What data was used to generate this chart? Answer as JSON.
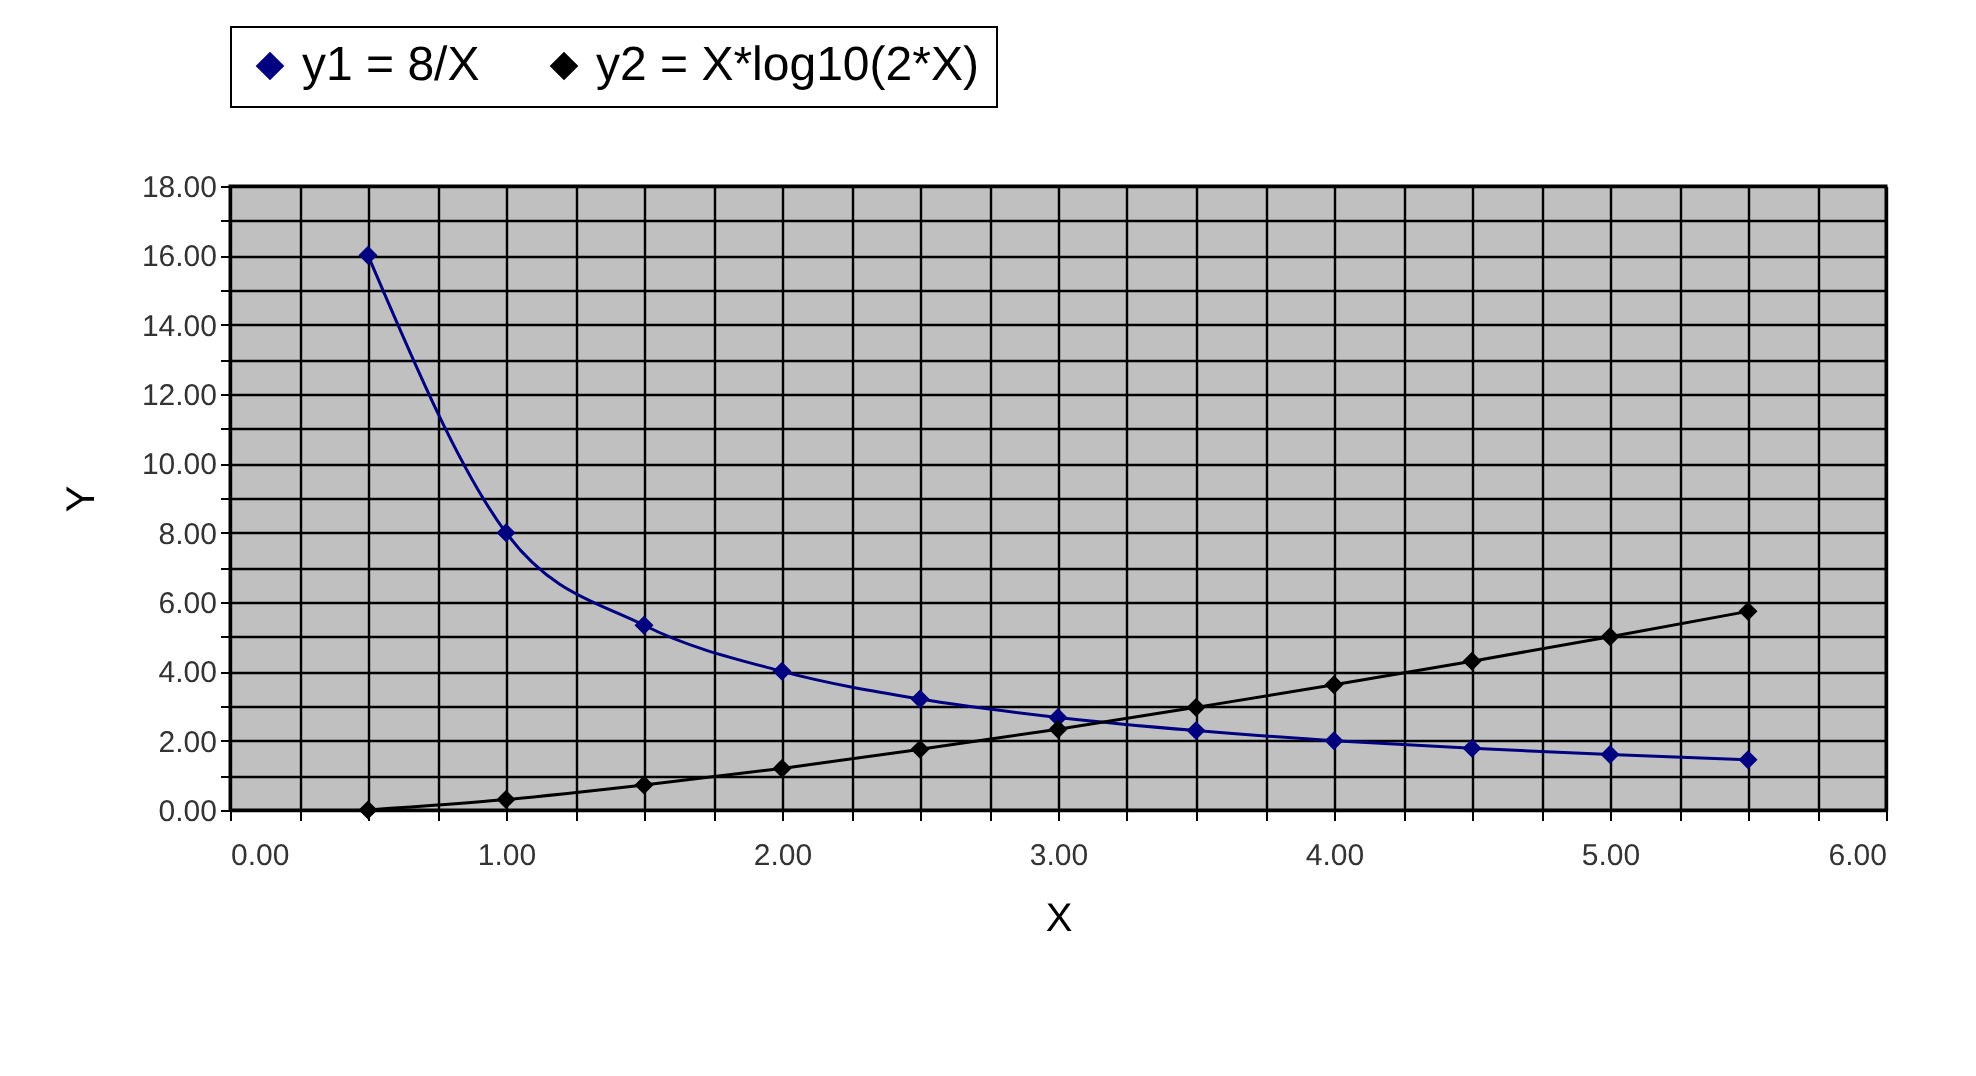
{
  "chart_data": {
    "type": "line",
    "xlabel": "X",
    "ylabel": "Y",
    "x": [
      0.5,
      1,
      1.5,
      2,
      2.5,
      3,
      3.5,
      4,
      4.5,
      5,
      5.5
    ],
    "series": [
      {
        "name": "y1 = 8/X",
        "color": "#000080",
        "values": [
          16,
          8,
          5.33,
          4,
          3.2,
          2.67,
          2.29,
          2,
          1.78,
          1.6,
          1.45
        ]
      },
      {
        "name": "y2 = X*log10(2*X)",
        "color": "#000000",
        "values": [
          0,
          0.3,
          0.72,
          1.2,
          1.75,
          2.33,
          2.96,
          3.61,
          4.29,
          5,
          5.73
        ]
      }
    ],
    "xlim": [
      0,
      6
    ],
    "xticks": [
      {
        "value": 0,
        "label": "0.00"
      },
      {
        "value": 0.25,
        "label": null
      },
      {
        "value": 0.5,
        "label": null
      },
      {
        "value": 0.75,
        "label": null
      },
      {
        "value": 1,
        "label": "1.00"
      },
      {
        "value": 1.25,
        "label": null
      },
      {
        "value": 1.5,
        "label": null
      },
      {
        "value": 1.75,
        "label": null
      },
      {
        "value": 2,
        "label": "2.00"
      },
      {
        "value": 2.25,
        "label": null
      },
      {
        "value": 2.5,
        "label": null
      },
      {
        "value": 2.75,
        "label": null
      },
      {
        "value": 3,
        "label": "3.00"
      },
      {
        "value": 3.25,
        "label": null
      },
      {
        "value": 3.5,
        "label": null
      },
      {
        "value": 3.75,
        "label": null
      },
      {
        "value": 4,
        "label": "4.00"
      },
      {
        "value": 4.25,
        "label": null
      },
      {
        "value": 4.5,
        "label": null
      },
      {
        "value": 4.75,
        "label": null
      },
      {
        "value": 5,
        "label": "5.00"
      },
      {
        "value": 5.25,
        "label": null
      },
      {
        "value": 5.5,
        "label": null
      },
      {
        "value": 5.75,
        "label": null
      },
      {
        "value": 6,
        "label": "6.00"
      }
    ],
    "ylim": [
      0,
      18
    ],
    "yticks": [
      {
        "value": 0,
        "label": "0.00"
      },
      {
        "value": 1,
        "label": null
      },
      {
        "value": 2,
        "label": "2.00"
      },
      {
        "value": 3,
        "label": null
      },
      {
        "value": 4,
        "label": "4.00"
      },
      {
        "value": 5,
        "label": null
      },
      {
        "value": 6,
        "label": "6.00"
      },
      {
        "value": 7,
        "label": null
      },
      {
        "value": 8,
        "label": "8.00"
      },
      {
        "value": 9,
        "label": null
      },
      {
        "value": 10,
        "label": "10.00"
      },
      {
        "value": 11,
        "label": null
      },
      {
        "value": 12,
        "label": "12.00"
      },
      {
        "value": 13,
        "label": null
      },
      {
        "value": 14,
        "label": "14.00"
      },
      {
        "value": 15,
        "label": null
      },
      {
        "value": 16,
        "label": "16.00"
      },
      {
        "value": 17,
        "label": null
      },
      {
        "value": 18,
        "label": "18.00"
      }
    ],
    "grid": true,
    "legend": "top",
    "marker": "diamond",
    "line_style": "solid"
  }
}
